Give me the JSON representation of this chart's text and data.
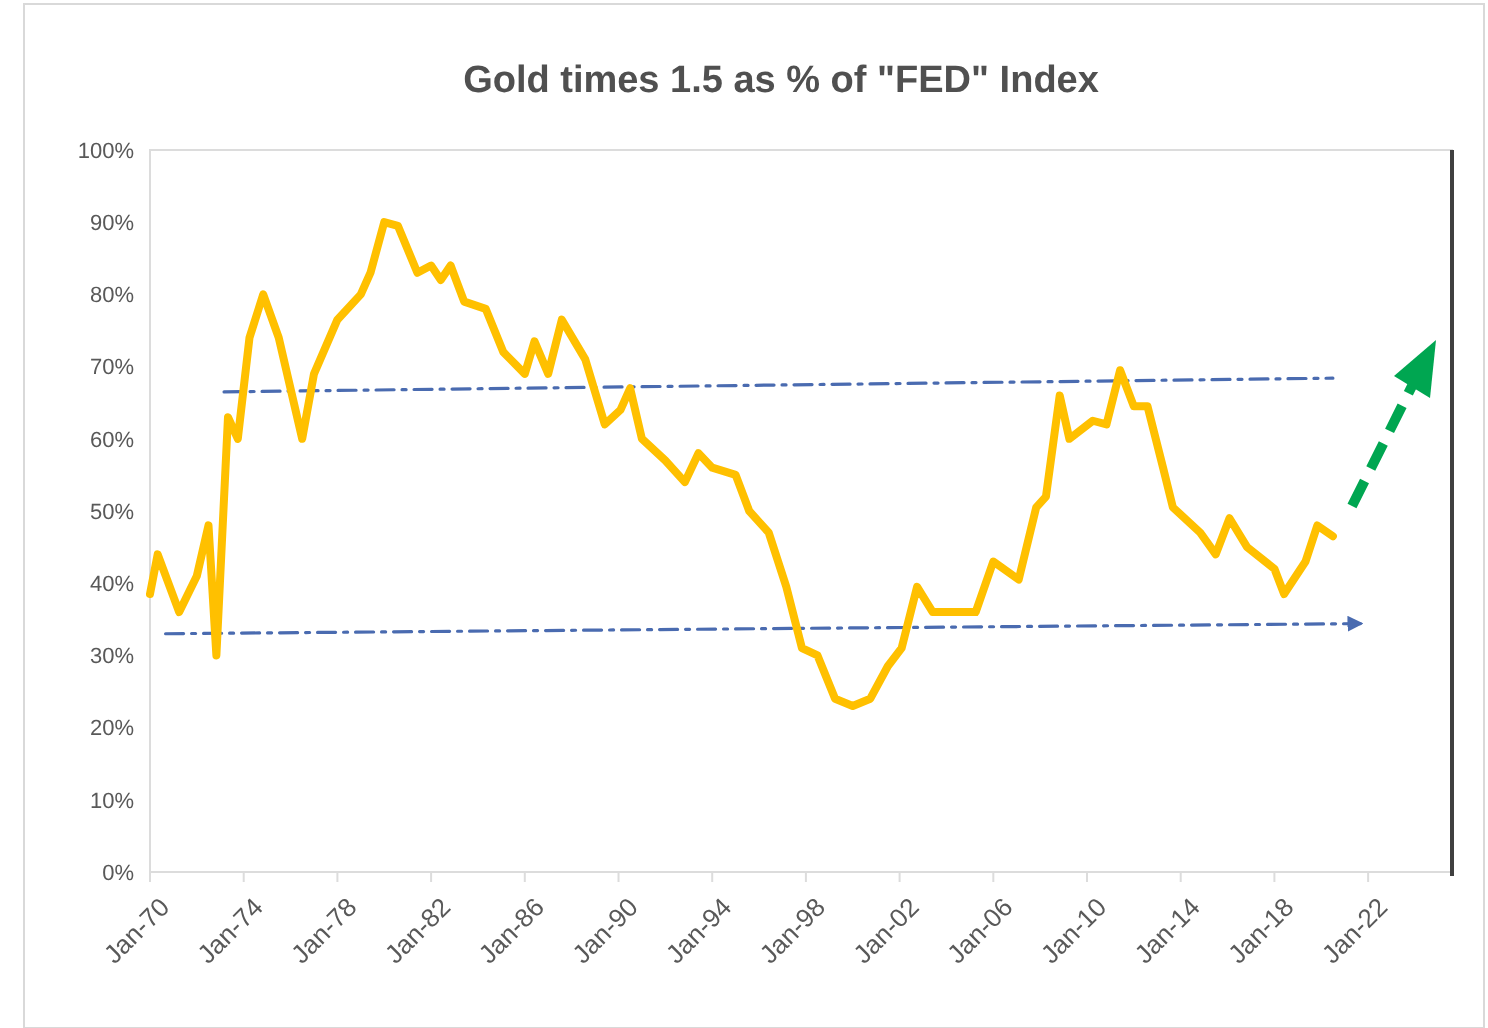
{
  "chart_data": {
    "type": "line",
    "title": "Gold times 1.5 as % of \"FED\" Index",
    "xlim": [
      "1970-01",
      "2025-08"
    ],
    "xticks": [
      {
        "value": "1970-01",
        "label": "Jan-70"
      },
      {
        "value": "1974-01",
        "label": "Jan-74"
      },
      {
        "value": "1978-01",
        "label": "Jan-78"
      },
      {
        "value": "1982-01",
        "label": "Jan-82"
      },
      {
        "value": "1986-01",
        "label": "Jan-86"
      },
      {
        "value": "1990-01",
        "label": "Jan-90"
      },
      {
        "value": "1994-01",
        "label": "Jan-94"
      },
      {
        "value": "1998-01",
        "label": "Jan-98"
      },
      {
        "value": "2002-01",
        "label": "Jan-02"
      },
      {
        "value": "2006-01",
        "label": "Jan-06"
      },
      {
        "value": "2010-01",
        "label": "Jan-10"
      },
      {
        "value": "2014-01",
        "label": "Jan-14"
      },
      {
        "value": "2018-01",
        "label": "Jan-18"
      },
      {
        "value": "2022-01",
        "label": "Jan-22"
      }
    ],
    "ylim": [
      0,
      100
    ],
    "yticks": [
      {
        "value": 0,
        "label": "0%"
      },
      {
        "value": 10,
        "label": "10%"
      },
      {
        "value": 20,
        "label": "20%"
      },
      {
        "value": 30,
        "label": "30%"
      },
      {
        "value": 40,
        "label": "40%"
      },
      {
        "value": 50,
        "label": "50%"
      },
      {
        "value": 60,
        "label": "60%"
      },
      {
        "value": 70,
        "label": "70%"
      },
      {
        "value": 80,
        "label": "80%"
      },
      {
        "value": 90,
        "label": "90%"
      },
      {
        "value": 100,
        "label": "100%"
      }
    ],
    "grid": false,
    "series": [
      {
        "color": "#ffc000",
        "x": [
          "1970-01",
          "1970-05",
          "1971-04",
          "1972-01",
          "1972-07",
          "1972-11",
          "1973-05",
          "1973-10",
          "1974-04",
          "1974-11",
          "1975-07",
          "1976-07",
          "1977-01",
          "1978-01",
          "1979-01",
          "1979-06",
          "1980-01",
          "1980-08",
          "1981-06",
          "1982-01",
          "1982-06",
          "1982-11",
          "1983-06",
          "1984-05",
          "1985-02",
          "1986-01",
          "1986-06",
          "1987-01",
          "1987-08",
          "1988-08",
          "1989-06",
          "1990-02",
          "1990-07",
          "1991-01",
          "1992-01",
          "1992-11",
          "1993-06",
          "1994-01",
          "1995-01",
          "1995-08",
          "1996-06",
          "1997-03",
          "1997-11",
          "1998-07",
          "1999-04",
          "2000-01",
          "2000-10",
          "2001-07",
          "2002-02",
          "2002-10",
          "2003-06",
          "2005-04",
          "2006-01",
          "2007-02",
          "2007-11",
          "2008-04",
          "2008-11",
          "2009-04",
          "2010-04",
          "2010-11",
          "2011-06",
          "2012-01",
          "2012-08",
          "2013-04",
          "2013-09",
          "2014-11",
          "2015-07",
          "2016-02",
          "2016-11",
          "2018-01",
          "2018-06",
          "2019-05",
          "2019-11",
          "2020-07"
        ],
        "values": [
          38.5,
          44,
          36,
          41,
          48,
          30,
          63,
          60,
          74,
          80,
          74,
          60,
          69,
          76.5,
          80,
          83,
          90,
          89.5,
          83,
          84,
          82,
          84,
          79,
          78,
          72,
          69,
          73.5,
          69,
          76.5,
          71,
          62,
          64,
          67,
          60,
          57,
          54,
          58,
          56,
          55,
          50,
          47,
          39.5,
          31,
          30,
          24,
          23,
          24,
          28.5,
          31,
          39.5,
          36,
          36,
          43,
          40.5,
          50.5,
          52,
          66,
          60,
          62.5,
          62,
          69.5,
          64.5,
          64.5,
          56,
          50.5,
          47,
          44,
          49,
          45,
          42,
          38.5,
          43,
          48,
          46.5
        ]
      },
      {
        "color": "#4a6bb0",
        "line_style": "dashed",
        "x": [
          "1973-03",
          "2020-07"
        ],
        "values": [
          66.5,
          68.4
        ]
      },
      {
        "color": "#4a6bb0",
        "line_style": "dashed",
        "x": [
          "1970-09",
          "2021-09"
        ],
        "values": [
          33,
          34.4
        ]
      }
    ]
  }
}
